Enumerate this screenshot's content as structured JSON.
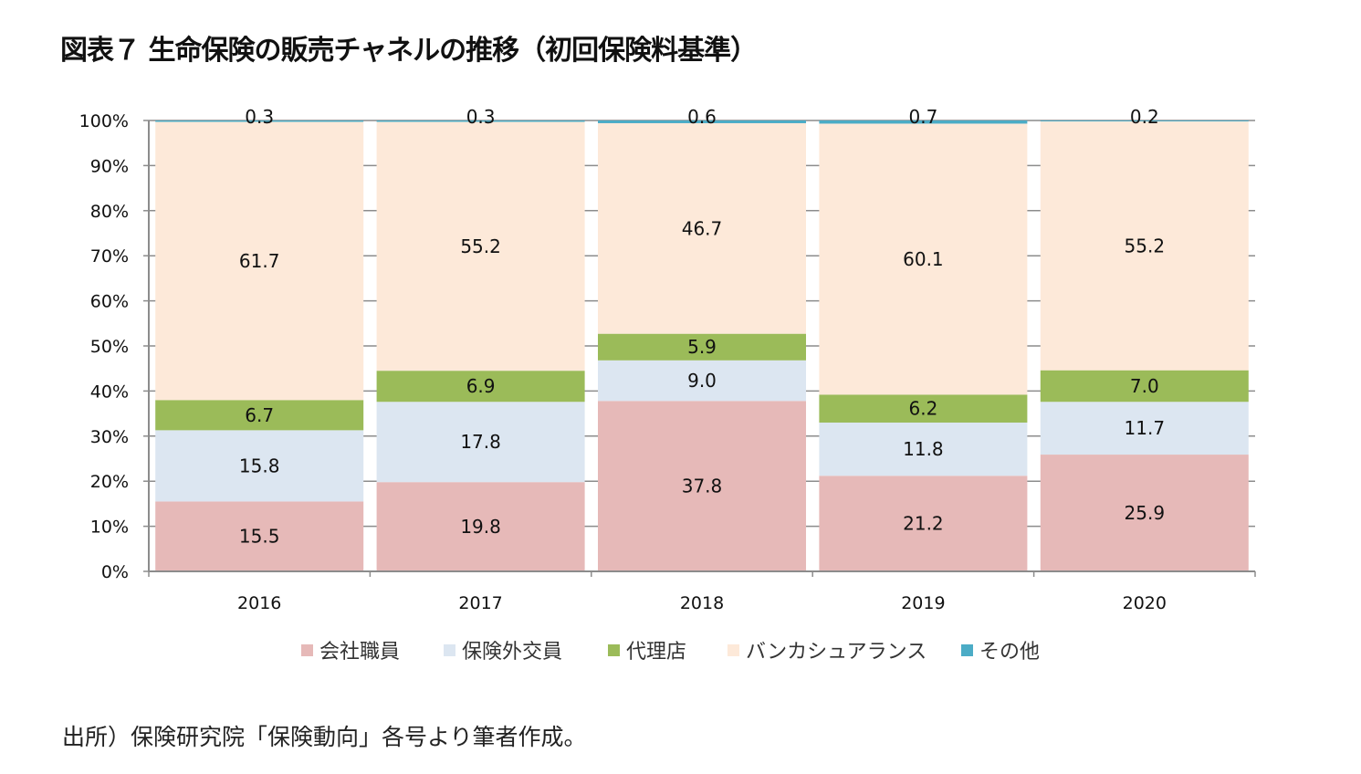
{
  "title": "図表７ 生命保険の販売チャネルの推移（初回保険料基準）",
  "source": "出所）保険研究院「保険動向」各号より筆者作成。",
  "chart_data": {
    "type": "bar",
    "stacked": true,
    "percent": true,
    "categories": [
      "2016",
      "2017",
      "2018",
      "2019",
      "2020"
    ],
    "series": [
      {
        "name": "会社職員",
        "color": "#e6b9b8",
        "values": [
          15.5,
          19.8,
          37.8,
          21.2,
          25.9
        ]
      },
      {
        "name": "保険外交員",
        "color": "#dce6f1",
        "values": [
          15.8,
          17.8,
          9.0,
          11.8,
          11.7
        ]
      },
      {
        "name": "代理店",
        "color": "#9bbb59",
        "values": [
          6.7,
          6.9,
          5.9,
          6.2,
          7.0
        ]
      },
      {
        "name": "バンカシュアランス",
        "color": "#fde9d9",
        "values": [
          61.7,
          55.2,
          46.7,
          60.1,
          55.2
        ]
      },
      {
        "name": "その他",
        "color": "#4bacc6",
        "values": [
          0.3,
          0.3,
          0.6,
          0.7,
          0.2
        ]
      }
    ],
    "yticks": [
      "0%",
      "10%",
      "20%",
      "30%",
      "40%",
      "50%",
      "60%",
      "70%",
      "80%",
      "90%",
      "100%"
    ],
    "ylim": [
      0,
      100
    ],
    "grid": true,
    "legend": "bottom"
  }
}
